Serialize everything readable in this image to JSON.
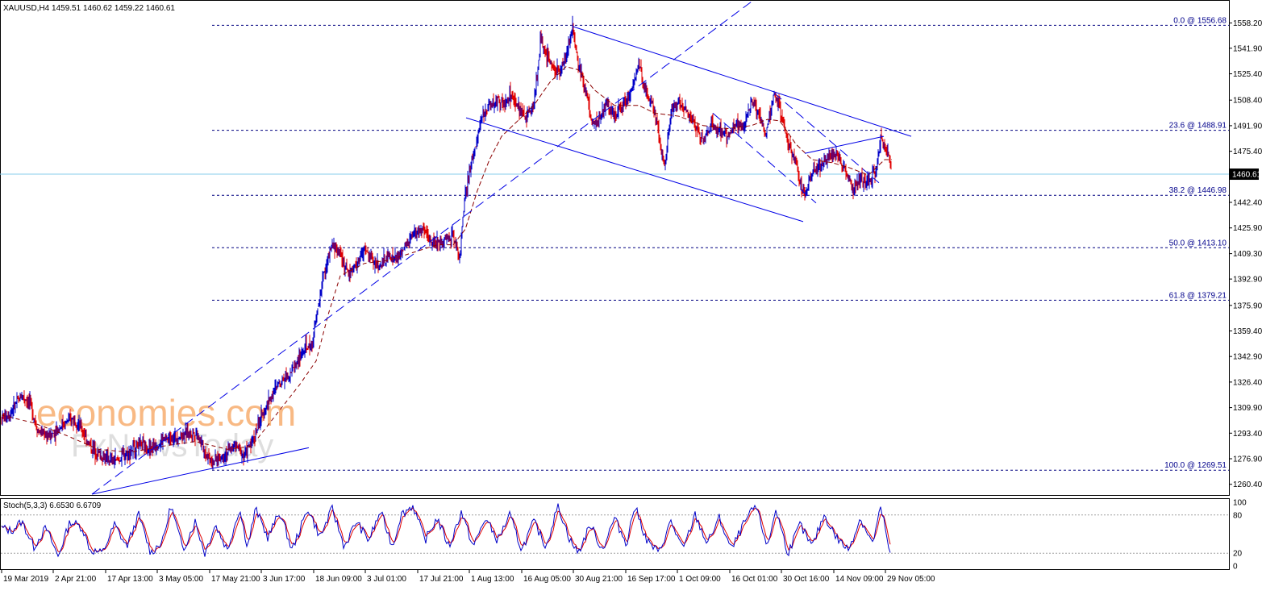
{
  "header": {
    "symbol_line": "XAUUSD,H4  1459.51 1460.62 1459.22 1460.61"
  },
  "oscillator": {
    "label": "Stoch(5,3,3) 6.6530 6.6709",
    "levels": [
      "100",
      "80",
      "20",
      "0"
    ]
  },
  "watermark": {
    "line1": "economies.com",
    "line2": "FxNewsToday"
  },
  "colors": {
    "candle_up": "#0000c8",
    "candle_down": "#e00000",
    "trendline": "#0000e6",
    "fib_line": "#000080",
    "ma": "#8b0000",
    "current_price_line": "#87ceeb",
    "stoch_main": "#0000c8",
    "stoch_signal": "#e00000",
    "watermark_orange": "#f6a15b",
    "watermark_gray": "#c8c8c8"
  },
  "chart_data": {
    "type": "candlestick",
    "symbol": "XAUUSD",
    "timeframe": "H4",
    "ylim": [
      1254,
      1572
    ],
    "current_price": "1460.61",
    "y_ticks": [
      "1558.20",
      "1541.90",
      "1525.40",
      "1508.40",
      "1491.90",
      "1475.40",
      "1442.40",
      "1425.90",
      "1409.30",
      "1392.90",
      "1375.90",
      "1359.40",
      "1342.90",
      "1326.40",
      "1309.90",
      "1293.40",
      "1276.90",
      "1260.40"
    ],
    "x_ticks": [
      "19 Mar 2019",
      "2 Apr 21:00",
      "17 Apr 13:00",
      "3 May 05:00",
      "17 May 21:00",
      "3 Jun 17:00",
      "18 Jun 09:00",
      "3 Jul 01:00",
      "17 Jul 21:00",
      "1 Aug 13:00",
      "16 Aug 05:00",
      "30 Aug 21:00",
      "16 Sep 17:00",
      "1 Oct 09:00",
      "16 Oct 01:00",
      "30 Oct 16:00",
      "14 Nov 09:00",
      "29 Nov 05:00"
    ],
    "x_tick_bar_index": [
      0,
      64,
      129,
      193,
      258,
      322,
      387,
      451,
      516,
      580,
      645,
      709,
      774,
      838,
      903,
      967,
      1032,
      1096
    ],
    "bar_count": 1104,
    "fibonacci": [
      {
        "label": "0.0 @ 1556.68",
        "price": 1556.68
      },
      {
        "label": "23.6 @ 1488.91",
        "price": 1488.91
      },
      {
        "label": "38.2 @ 1446.98",
        "price": 1446.98
      },
      {
        "label": "50.0 @ 1413.10",
        "price": 1413.1
      },
      {
        "label": "61.8 @ 1379.21",
        "price": 1379.21
      },
      {
        "label": "100.0 @ 1269.51",
        "price": 1269.51
      }
    ],
    "price_path": [
      [
        0,
        1303
      ],
      [
        10,
        1306
      ],
      [
        25,
        1318
      ],
      [
        35,
        1313
      ],
      [
        45,
        1295
      ],
      [
        60,
        1291
      ],
      [
        75,
        1299
      ],
      [
        90,
        1303
      ],
      [
        100,
        1295
      ],
      [
        110,
        1285
      ],
      [
        125,
        1278
      ],
      [
        140,
        1275
      ],
      [
        155,
        1280
      ],
      [
        170,
        1286
      ],
      [
        185,
        1283
      ],
      [
        200,
        1289
      ],
      [
        215,
        1291
      ],
      [
        230,
        1293
      ],
      [
        242,
        1294
      ],
      [
        252,
        1281
      ],
      [
        262,
        1275
      ],
      [
        275,
        1279
      ],
      [
        290,
        1286
      ],
      [
        300,
        1279
      ],
      [
        310,
        1287
      ],
      [
        320,
        1301
      ],
      [
        330,
        1313
      ],
      [
        345,
        1327
      ],
      [
        360,
        1334
      ],
      [
        375,
        1347
      ],
      [
        385,
        1351
      ],
      [
        392,
        1373
      ],
      [
        398,
        1393
      ],
      [
        410,
        1415
      ],
      [
        420,
        1409
      ],
      [
        430,
        1396
      ],
      [
        440,
        1402
      ],
      [
        450,
        1412
      ],
      [
        460,
        1405
      ],
      [
        470,
        1401
      ],
      [
        480,
        1408
      ],
      [
        490,
        1406
      ],
      [
        500,
        1413
      ],
      [
        510,
        1421
      ],
      [
        520,
        1425
      ],
      [
        530,
        1419
      ],
      [
        540,
        1416
      ],
      [
        550,
        1419
      ],
      [
        560,
        1421
      ],
      [
        568,
        1407
      ],
      [
        574,
        1443
      ],
      [
        580,
        1461
      ],
      [
        588,
        1481
      ],
      [
        595,
        1496
      ],
      [
        605,
        1506
      ],
      [
        615,
        1508
      ],
      [
        625,
        1506
      ],
      [
        632,
        1512
      ],
      [
        640,
        1503
      ],
      [
        650,
        1497
      ],
      [
        660,
        1506
      ],
      [
        668,
        1546
      ],
      [
        680,
        1533
      ],
      [
        690,
        1526
      ],
      [
        700,
        1536
      ],
      [
        708,
        1556
      ],
      [
        715,
        1531
      ],
      [
        725,
        1513
      ],
      [
        732,
        1493
      ],
      [
        740,
        1496
      ],
      [
        750,
        1506
      ],
      [
        760,
        1499
      ],
      [
        770,
        1506
      ],
      [
        780,
        1513
      ],
      [
        790,
        1531
      ],
      [
        800,
        1513
      ],
      [
        810,
        1501
      ],
      [
        818,
        1476
      ],
      [
        822,
        1467
      ],
      [
        830,
        1501
      ],
      [
        840,
        1508
      ],
      [
        850,
        1501
      ],
      [
        860,
        1493
      ],
      [
        870,
        1481
      ],
      [
        880,
        1493
      ],
      [
        890,
        1488
      ],
      [
        900,
        1485
      ],
      [
        910,
        1493
      ],
      [
        920,
        1491
      ],
      [
        930,
        1509
      ],
      [
        940,
        1498
      ],
      [
        948,
        1486
      ],
      [
        958,
        1513
      ],
      [
        966,
        1501
      ],
      [
        972,
        1488
      ],
      [
        980,
        1475
      ],
      [
        988,
        1459
      ],
      [
        996,
        1446
      ],
      [
        1005,
        1463
      ],
      [
        1015,
        1466
      ],
      [
        1025,
        1471
      ],
      [
        1035,
        1475
      ],
      [
        1045,
        1463
      ],
      [
        1055,
        1451
      ],
      [
        1065,
        1457
      ],
      [
        1075,
        1455
      ],
      [
        1085,
        1466
      ],
      [
        1090,
        1484
      ],
      [
        1096,
        1477
      ],
      [
        1100,
        1472
      ],
      [
        1104,
        1460.61
      ]
    ],
    "stoch_path": [
      [
        0,
        60
      ],
      [
        12,
        55
      ],
      [
        25,
        70
      ],
      [
        40,
        30
      ],
      [
        55,
        60
      ],
      [
        70,
        15
      ],
      [
        85,
        70
      ],
      [
        100,
        60
      ],
      [
        110,
        25
      ],
      [
        125,
        20
      ],
      [
        140,
        65
      ],
      [
        155,
        30
      ],
      [
        170,
        80
      ],
      [
        185,
        20
      ],
      [
        200,
        40
      ],
      [
        210,
        95
      ],
      [
        225,
        25
      ],
      [
        240,
        70
      ],
      [
        252,
        20
      ],
      [
        265,
        65
      ],
      [
        280,
        25
      ],
      [
        295,
        90
      ],
      [
        305,
        30
      ],
      [
        315,
        90
      ],
      [
        330,
        45
      ],
      [
        345,
        85
      ],
      [
        360,
        25
      ],
      [
        380,
        90
      ],
      [
        395,
        45
      ],
      [
        410,
        90
      ],
      [
        425,
        30
      ],
      [
        440,
        70
      ],
      [
        455,
        40
      ],
      [
        470,
        85
      ],
      [
        485,
        30
      ],
      [
        495,
        80
      ],
      [
        510,
        95
      ],
      [
        525,
        40
      ],
      [
        540,
        75
      ],
      [
        555,
        30
      ],
      [
        570,
        85
      ],
      [
        585,
        30
      ],
      [
        600,
        75
      ],
      [
        615,
        40
      ],
      [
        630,
        80
      ],
      [
        645,
        25
      ],
      [
        660,
        70
      ],
      [
        675,
        30
      ],
      [
        690,
        95
      ],
      [
        705,
        40
      ],
      [
        715,
        20
      ],
      [
        730,
        65
      ],
      [
        745,
        25
      ],
      [
        760,
        75
      ],
      [
        775,
        35
      ],
      [
        785,
        95
      ],
      [
        800,
        40
      ],
      [
        815,
        20
      ],
      [
        830,
        70
      ],
      [
        845,
        25
      ],
      [
        860,
        80
      ],
      [
        875,
        35
      ],
      [
        890,
        75
      ],
      [
        905,
        25
      ],
      [
        920,
        65
      ],
      [
        935,
        95
      ],
      [
        950,
        30
      ],
      [
        960,
        90
      ],
      [
        975,
        20
      ],
      [
        990,
        65
      ],
      [
        1005,
        30
      ],
      [
        1020,
        80
      ],
      [
        1035,
        45
      ],
      [
        1050,
        25
      ],
      [
        1065,
        75
      ],
      [
        1080,
        35
      ],
      [
        1090,
        90
      ],
      [
        1096,
        60
      ],
      [
        1100,
        25
      ],
      [
        1104,
        6.65
      ]
    ],
    "ma_path": [
      [
        560,
        1415
      ],
      [
        575,
        1425
      ],
      [
        590,
        1450
      ],
      [
        605,
        1470
      ],
      [
        620,
        1485
      ],
      [
        640,
        1495
      ],
      [
        660,
        1505
      ],
      [
        680,
        1520
      ],
      [
        700,
        1530
      ],
      [
        715,
        1528
      ],
      [
        735,
        1515
      ],
      [
        760,
        1505
      ],
      [
        790,
        1505
      ],
      [
        810,
        1500
      ],
      [
        840,
        1498
      ],
      [
        870,
        1492
      ],
      [
        900,
        1490
      ],
      [
        930,
        1492
      ],
      [
        950,
        1496
      ],
      [
        965,
        1495
      ],
      [
        985,
        1480
      ],
      [
        1005,
        1470
      ],
      [
        1030,
        1468
      ],
      [
        1050,
        1465
      ],
      [
        1075,
        1460
      ],
      [
        1095,
        1470
      ],
      [
        1104,
        1470
      ]
    ],
    "ma_early_path": [
      [
        0,
        1305
      ],
      [
        40,
        1300
      ],
      [
        80,
        1292
      ],
      [
        120,
        1283
      ],
      [
        160,
        1281
      ],
      [
        200,
        1285
      ],
      [
        240,
        1288
      ],
      [
        280,
        1283
      ],
      [
        310,
        1285
      ],
      [
        340,
        1305
      ],
      [
        370,
        1325
      ],
      [
        390,
        1340
      ],
      [
        405,
        1370
      ],
      [
        420,
        1395
      ],
      [
        450,
        1403
      ],
      [
        480,
        1405
      ],
      [
        510,
        1410
      ],
      [
        540,
        1415
      ],
      [
        560,
        1415
      ]
    ],
    "trendlines": [
      {
        "style": "solid",
        "points": [
          [
            112,
            1254
          ],
          [
            381,
            1284
          ]
        ]
      },
      {
        "style": "dashed",
        "points": [
          [
            112,
            1254
          ],
          [
            930,
            1572
          ]
        ]
      },
      {
        "style": "solid",
        "points": [
          [
            708,
            1556
          ],
          [
            1128,
            1485
          ]
        ]
      },
      {
        "style": "solid",
        "points": [
          [
            576,
            1497
          ],
          [
            994,
            1430
          ]
        ]
      },
      {
        "style": "solid",
        "points": [
          [
            996,
            1474
          ],
          [
            1094,
            1485
          ]
        ]
      },
      {
        "style": "dashed",
        "points": [
          [
            882,
            1500
          ],
          [
            1010,
            1442
          ]
        ]
      },
      {
        "style": "dashed",
        "points": [
          [
            958,
            1513
          ],
          [
            1088,
            1455
          ]
        ]
      }
    ]
  }
}
